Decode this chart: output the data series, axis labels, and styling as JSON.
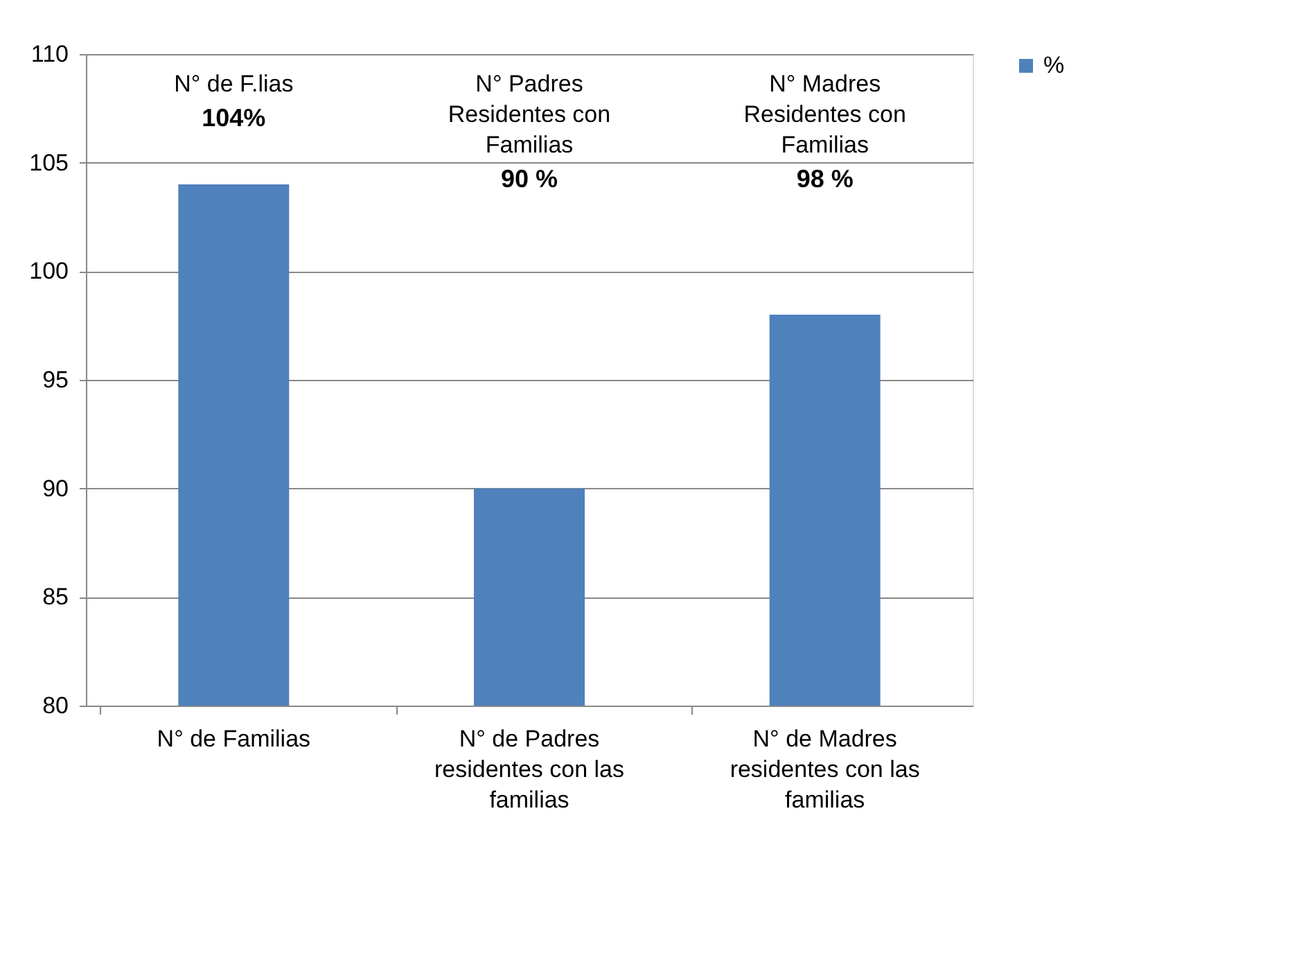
{
  "chart_data": {
    "type": "bar",
    "categories": [
      "N° de Familias",
      "N° de Padres residentes con las familias",
      "N° de Madres residentes con las familias"
    ],
    "series": [
      {
        "name": "%",
        "color": "#4f81bd",
        "values": [
          104,
          90,
          98
        ]
      }
    ],
    "ylim": [
      80,
      110
    ],
    "yticks": [
      80,
      85,
      90,
      95,
      100,
      105,
      110
    ],
    "grid": "y",
    "legend": "right",
    "annotations": [
      "N° de F.lias",
      "104%",
      "N° Padres Residentes con Familias",
      "90 %",
      "N° Madres Residentes con Familias",
      "98 %"
    ]
  }
}
